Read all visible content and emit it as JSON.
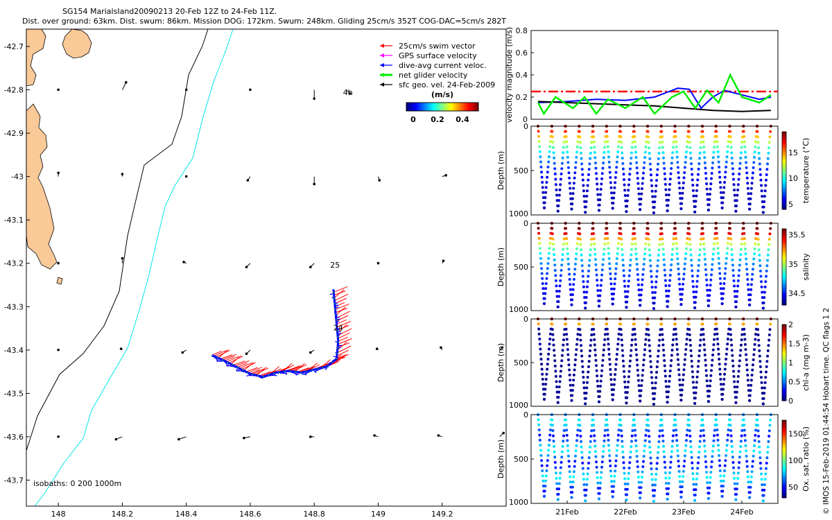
{
  "header": {
    "line1": "SG154 MarialsIand20090213 20-Feb 12Z to 24-Feb 11Z.",
    "line2": "Dist. over ground: 63km. Dist. swum: 86km. Mission DOG: 172km. Swum: 248km. Gliding 25cm/s 352T COG-DAC=5cm/s 282T"
  },
  "credit": "© IMOS 15-Feb-2019 01:44:54 Hobart time. QC flags 1  2",
  "colors": {
    "land": "#F9C998",
    "isobath_200": "#00E5EE",
    "swim": "#FF0000",
    "gps": "#FF00FF",
    "dac": "#0000FF",
    "net": "#00EE00",
    "sfc": "#000000"
  },
  "legend": {
    "items": [
      {
        "label": "25cm/s swim vector",
        "color": "#FF0000"
      },
      {
        "label": "GPS surface velocity",
        "color": "#FF00FF"
      },
      {
        "label": "dive-avg current veloc.",
        "color": "#0000FF"
      },
      {
        "label": "net glider velocity",
        "color": "#00EE00"
      },
      {
        "label": "sfc geo. vel. 24-Feb-2009",
        "color": "#000000"
      }
    ],
    "colorbar_title": "(m/s)",
    "colorbar_ticks": [
      "0",
      "0.2",
      "0.4"
    ]
  },
  "chart_data": [
    {
      "type": "map",
      "x_ticks": [
        "148",
        "148.2",
        "148.4",
        "148.6",
        "148.8",
        "149",
        "149.2"
      ],
      "y_ticks": [
        "-42.7",
        "-42.8",
        "-42.9",
        "-43",
        "-43.1",
        "-43.2",
        "-43.3",
        "-43.4",
        "-43.5",
        "-43.6",
        "-43.7"
      ],
      "xlim": [
        147.9,
        149.4
      ],
      "ylim": [
        -43.76,
        -42.66
      ],
      "isobaths_label": "isobaths: 0   200  1000m",
      "annotations": [
        {
          "text": "4h",
          "lon": 148.89,
          "lat": -42.812
        },
        {
          "text": "25",
          "lon": 148.85,
          "lat": -43.21
        },
        {
          "text": "24",
          "lon": 148.86,
          "lat": -43.355
        }
      ],
      "glider_track": [
        [
          148.48,
          -43.412
        ],
        [
          148.52,
          -43.425
        ],
        [
          148.56,
          -43.44
        ],
        [
          148.6,
          -43.455
        ],
        [
          148.64,
          -43.462
        ],
        [
          148.68,
          -43.452
        ],
        [
          148.72,
          -43.448
        ],
        [
          148.76,
          -43.452
        ],
        [
          148.8,
          -43.445
        ],
        [
          148.84,
          -43.438
        ],
        [
          148.87,
          -43.42
        ],
        [
          148.875,
          -43.38
        ],
        [
          148.87,
          -43.34
        ],
        [
          148.865,
          -43.3
        ],
        [
          148.86,
          -43.26
        ]
      ],
      "sfc_vectors": [
        [
          148.0,
          -42.8,
          0,
          0.01
        ],
        [
          148.2,
          -42.8,
          0.3,
          0.6
        ],
        [
          148.4,
          -42.8,
          0,
          0.01
        ],
        [
          148.6,
          -42.8,
          0,
          0.01
        ],
        [
          148.8,
          -42.8,
          0,
          -0.7
        ],
        [
          148.9,
          -42.8,
          0.3,
          -0.3
        ],
        [
          148.0,
          -43.0,
          0,
          0.3
        ],
        [
          148.2,
          -43.0,
          0,
          0.2
        ],
        [
          148.4,
          -43.0,
          0,
          0.01
        ],
        [
          148.6,
          -43.0,
          -0.2,
          -0.3
        ],
        [
          148.8,
          -43.0,
          0,
          -0.6
        ],
        [
          149.0,
          -43.0,
          0.1,
          -0.3
        ],
        [
          149.2,
          -43.0,
          0.3,
          0.1
        ],
        [
          148.0,
          -43.2,
          0,
          0.01
        ],
        [
          148.2,
          -43.2,
          0,
          0.4
        ],
        [
          148.4,
          -43.2,
          -0.2,
          0.1
        ],
        [
          148.6,
          -43.2,
          -0.3,
          -0.3
        ],
        [
          148.8,
          -43.2,
          -0.3,
          -0.3
        ],
        [
          149.0,
          -43.2,
          0,
          0.01
        ],
        [
          149.2,
          -43.2,
          0.1,
          0.2
        ],
        [
          148.0,
          -43.4,
          0,
          0.01
        ],
        [
          148.2,
          -43.4,
          -0.1,
          0.1
        ],
        [
          148.4,
          -43.4,
          -0.3,
          -0.2
        ],
        [
          148.6,
          -43.4,
          -0.3,
          -0.3
        ],
        [
          148.8,
          -43.4,
          -0.3,
          -0.2
        ],
        [
          149.0,
          -43.4,
          -0.1,
          0.1
        ],
        [
          149.2,
          -43.4,
          -0.1,
          0.2
        ],
        [
          149.38,
          -43.4,
          0.2,
          0.2
        ],
        [
          148.0,
          -43.6,
          0,
          0.01
        ],
        [
          148.2,
          -43.6,
          -0.5,
          -0.2
        ],
        [
          148.4,
          -43.6,
          -0.6,
          -0.2
        ],
        [
          148.6,
          -43.6,
          -0.5,
          -0.1
        ],
        [
          148.8,
          -43.6,
          -0.3,
          0
        ],
        [
          149.0,
          -43.6,
          -0.3,
          0.1
        ],
        [
          149.2,
          -43.6,
          -0.3,
          0.1
        ],
        [
          149.38,
          -43.6,
          0.3,
          0.3
        ]
      ]
    },
    {
      "type": "line",
      "ylabel": "velocity magnitude (m/s)",
      "ylim": [
        0,
        0.8
      ],
      "y_ticks": [
        "0",
        "0.2",
        "0.4",
        "0.6",
        "0.8"
      ],
      "x_days": [
        0,
        4
      ],
      "reference_line": 0.25,
      "series": [
        {
          "name": "dive-avg current",
          "color": "#0000FF",
          "points": [
            [
              0,
              0.15
            ],
            [
              0.5,
              0.16
            ],
            [
              1,
              0.18
            ],
            [
              1.5,
              0.17
            ],
            [
              2,
              0.2
            ],
            [
              2.4,
              0.28
            ],
            [
              2.6,
              0.27
            ],
            [
              2.8,
              0.1
            ],
            [
              3.0,
              0.2
            ],
            [
              3.2,
              0.26
            ],
            [
              3.5,
              0.22
            ],
            [
              3.8,
              0.18
            ],
            [
              4,
              0.2
            ]
          ]
        },
        {
          "name": "sfc geo",
          "color": "#000000",
          "points": [
            [
              0,
              0.16
            ],
            [
              0.5,
              0.15
            ],
            [
              1,
              0.14
            ],
            [
              1.5,
              0.13
            ],
            [
              2,
              0.12
            ],
            [
              2.5,
              0.1
            ],
            [
              3,
              0.08
            ],
            [
              3.5,
              0.07
            ],
            [
              4,
              0.08
            ]
          ]
        },
        {
          "name": "net glider",
          "color": "#00EE00",
          "points": [
            [
              0,
              0.15
            ],
            [
              0.1,
              0.05
            ],
            [
              0.3,
              0.2
            ],
            [
              0.6,
              0.1
            ],
            [
              0.8,
              0.2
            ],
            [
              1.0,
              0.05
            ],
            [
              1.2,
              0.18
            ],
            [
              1.5,
              0.1
            ],
            [
              1.8,
              0.2
            ],
            [
              2.0,
              0.05
            ],
            [
              2.3,
              0.2
            ],
            [
              2.5,
              0.25
            ],
            [
              2.7,
              0.1
            ],
            [
              2.9,
              0.26
            ],
            [
              3.1,
              0.15
            ],
            [
              3.3,
              0.4
            ],
            [
              3.5,
              0.2
            ],
            [
              3.8,
              0.15
            ],
            [
              4,
              0.22
            ]
          ]
        }
      ]
    },
    {
      "type": "scatter",
      "ylabel": "Depth (m)",
      "colorbar_label": "temperature (°C)",
      "y_ticks": [
        "0",
        "500",
        "1000"
      ],
      "cbar_ticks": [
        "5",
        "10",
        "15"
      ],
      "cbar_range": [
        4,
        19
      ],
      "ylim": [
        0,
        1000
      ],
      "palette": "jet",
      "dives": 17,
      "cycle_days": 0.235
    },
    {
      "type": "scatter",
      "ylabel": "Depth (m)",
      "colorbar_label": "salinity",
      "y_ticks": [
        "0",
        "500",
        "1000"
      ],
      "cbar_ticks": [
        "34.5",
        "35",
        "35.5"
      ],
      "cbar_range": [
        34.3,
        35.6
      ],
      "ylim": [
        0,
        1000
      ],
      "palette": "jet",
      "dives": 17,
      "cycle_days": 0.235
    },
    {
      "type": "scatter",
      "ylabel": "Depth (m)",
      "colorbar_label": "chl-a (mg m-3)",
      "y_ticks": [
        "0",
        "500",
        "1000"
      ],
      "cbar_ticks": [
        "0",
        "0.5",
        "1",
        "1.5",
        "2"
      ],
      "cbar_range": [
        0,
        2
      ],
      "ylim": [
        0,
        1000
      ],
      "palette": "jet",
      "dives": 17,
      "cycle_days": 0.235
    },
    {
      "type": "scatter",
      "ylabel": "Depth (m)",
      "colorbar_label": "Ox. sat. ratio (%)",
      "y_ticks": [
        "0",
        "500",
        "1000"
      ],
      "cbar_ticks": [
        "50",
        "100",
        "150"
      ],
      "cbar_range": [
        30,
        175
      ],
      "ylim": [
        0,
        1000
      ],
      "palette": "jet",
      "dives": 17,
      "cycle_days": 0.235,
      "x_ticks": [
        "21Feb",
        "22Feb",
        "23Feb",
        "24Feb"
      ],
      "x_tick_days": [
        0.5,
        1.5,
        2.5,
        3.5
      ]
    }
  ]
}
